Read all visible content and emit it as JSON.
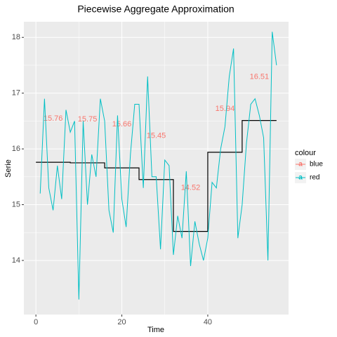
{
  "chart_data": {
    "type": "line",
    "title": "Piecewise Aggregate Approximation",
    "x_label": "Time",
    "y_label": "Serie",
    "legend_title": "colour",
    "xlim": [
      -2.8,
      58.8
    ],
    "xticks": [
      0,
      20,
      40
    ],
    "ylim": [
      13.03,
      18.28
    ],
    "yticks": [
      14,
      15,
      16,
      17,
      18
    ],
    "grid": true,
    "series": [
      {
        "name": "blue",
        "color": "#F8766D",
        "step_color": "#000000",
        "breaks": [
          0,
          8,
          16,
          24,
          32,
          40,
          48,
          56
        ],
        "x": [
          4,
          12,
          20,
          28,
          36,
          44,
          52
        ],
        "values": [
          15.76,
          15.75,
          15.66,
          15.45,
          14.52,
          15.94,
          16.51
        ]
      },
      {
        "name": "red",
        "color": "#00BFC4",
        "x": [
          1,
          2,
          3,
          4,
          5,
          6,
          7,
          8,
          9,
          10,
          11,
          12,
          13,
          14,
          15,
          16,
          17,
          18,
          19,
          20,
          21,
          22,
          23,
          24,
          25,
          26,
          27,
          28,
          29,
          30,
          31,
          32,
          33,
          34,
          35,
          36,
          37,
          38,
          39,
          40,
          41,
          42,
          43,
          44,
          45,
          46,
          47,
          48,
          49,
          50,
          51,
          52,
          53,
          54,
          55,
          56
        ],
        "values": [
          15.2,
          16.9,
          15.3,
          14.9,
          15.7,
          15.1,
          16.7,
          16.3,
          16.5,
          13.3,
          16.5,
          15.0,
          15.9,
          15.5,
          16.9,
          16.5,
          14.9,
          14.5,
          16.6,
          15.1,
          14.6,
          15.9,
          16.8,
          16.8,
          15.3,
          17.3,
          15.5,
          15.5,
          14.2,
          15.8,
          15.7,
          14.1,
          14.8,
          14.4,
          15.6,
          13.9,
          14.7,
          14.3,
          14.0,
          14.4,
          15.4,
          15.3,
          16.0,
          16.4,
          17.3,
          17.8,
          14.4,
          15.0,
          16.1,
          16.8,
          16.9,
          16.6,
          16.2,
          14.0,
          18.1,
          17.5
        ]
      }
    ]
  }
}
